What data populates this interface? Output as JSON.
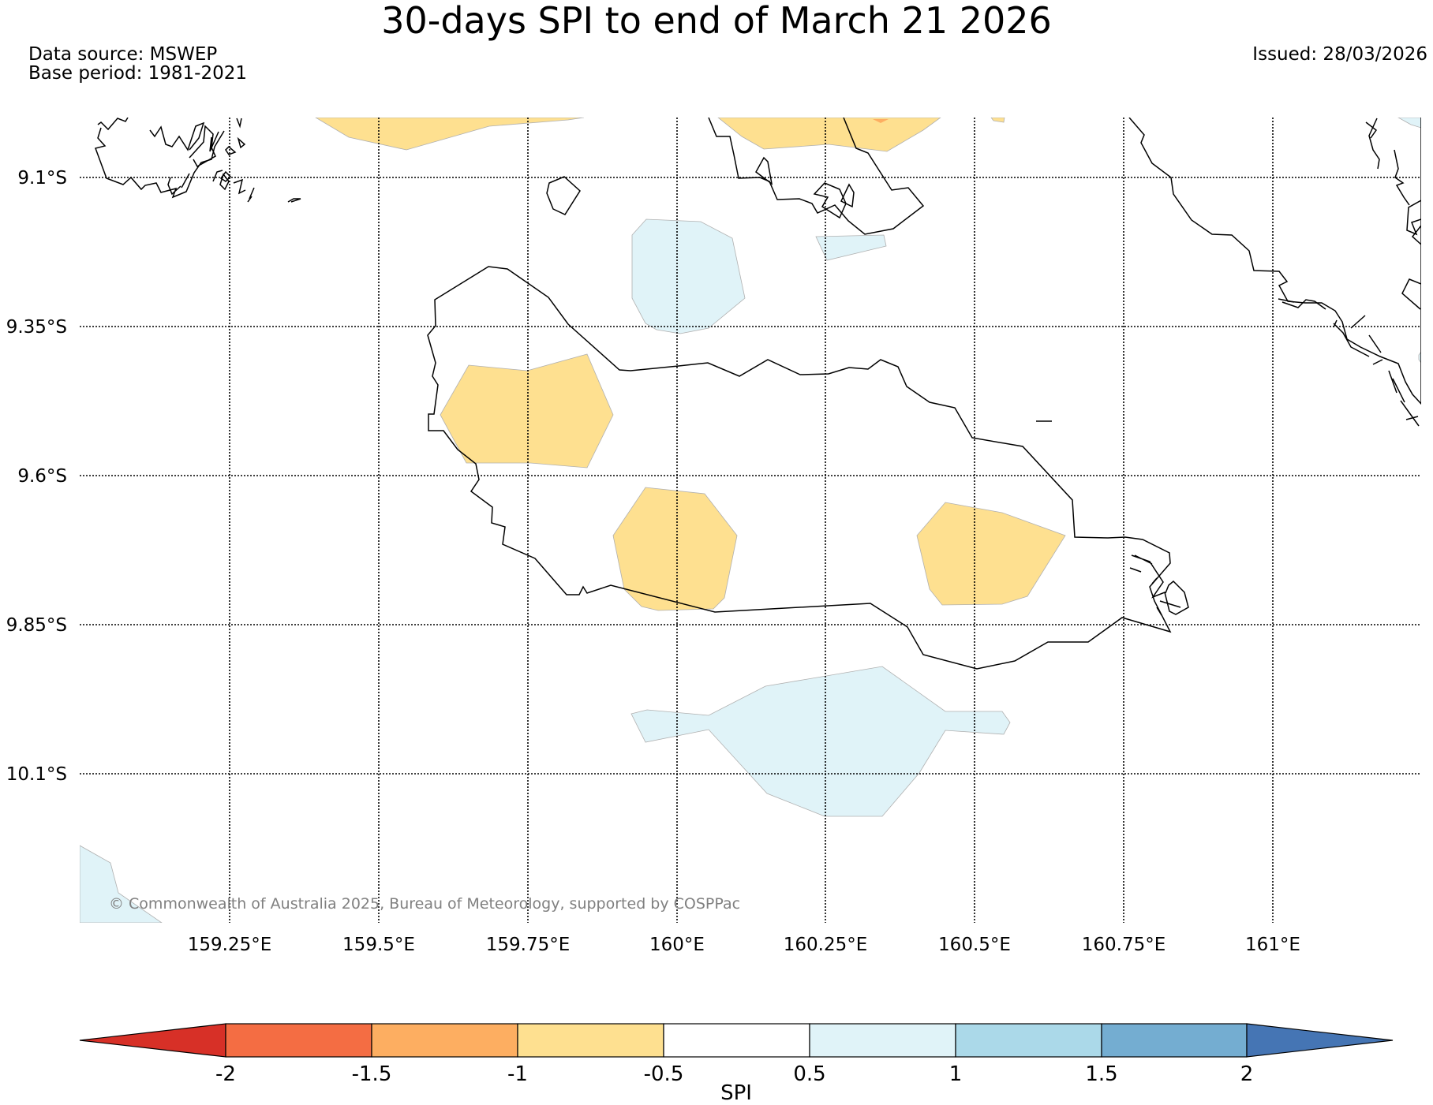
{
  "header": {
    "title": "30-days SPI to end of March 21 2026",
    "data_source": "Data source: MSWEP",
    "base_period": "Base period: 1981-2021",
    "issued": "Issued: 28/03/2026"
  },
  "map": {
    "lat_labels": [
      "9.1°S",
      "9.35°S",
      "9.6°S",
      "9.85°S",
      "10.1°S"
    ],
    "lon_labels": [
      "159.25°E",
      "159.5°E",
      "159.75°E",
      "160°E",
      "160.25°E",
      "160.5°E",
      "160.75°E",
      "161°E"
    ],
    "copyright": "© Commonwealth of Australia 2025, Bureau of Meteorology, supported by COSPPac",
    "colors": {
      "coastline": "#000000",
      "gridline": "#000000"
    }
  },
  "colorbar": {
    "label": "SPI",
    "ticks": [
      "-2",
      "-1.5",
      "-1",
      "-0.5",
      "0.5",
      "1",
      "1.5",
      "2"
    ],
    "levels": [
      {
        "range": "< -2",
        "color": "#d73027"
      },
      {
        "range": "-2 to -1.5",
        "color": "#f46d43"
      },
      {
        "range": "-1.5 to -1",
        "color": "#fdae61"
      },
      {
        "range": "-1 to -0.5",
        "color": "#fee090"
      },
      {
        "range": "-0.5 to 0.5",
        "color": "#ffffff"
      },
      {
        "range": "0.5 to 1",
        "color": "#e0f3f8"
      },
      {
        "range": "1 to 1.5",
        "color": "#abd9e9"
      },
      {
        "range": "1.5 to 2",
        "color": "#74add1"
      },
      {
        "range": "> 2",
        "color": "#4575b4"
      }
    ]
  }
}
